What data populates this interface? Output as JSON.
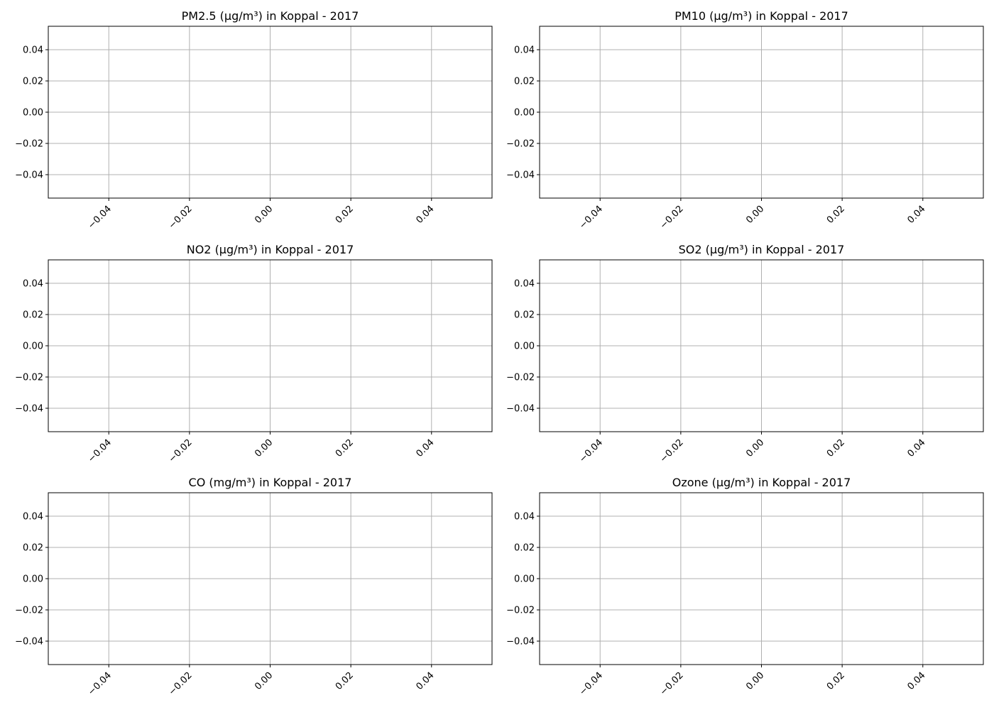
{
  "chart_data": [
    {
      "type": "line",
      "title": "PM2.5 (µg/m³) in Koppal - 2017",
      "xlabel": "",
      "ylabel": "",
      "x_ticks": [
        "−0.04",
        "−0.02",
        "0.00",
        "0.02",
        "0.04"
      ],
      "y_ticks": [
        "0.04",
        "0.02",
        "0.00",
        "−0.02",
        "−0.04"
      ],
      "xlim": [
        -0.055,
        0.055
      ],
      "ylim": [
        -0.055,
        0.055
      ],
      "grid": true,
      "series": []
    },
    {
      "type": "line",
      "title": "PM10 (µg/m³) in Koppal - 2017",
      "xlabel": "",
      "ylabel": "",
      "x_ticks": [
        "−0.04",
        "−0.02",
        "0.00",
        "0.02",
        "0.04"
      ],
      "y_ticks": [
        "0.04",
        "0.02",
        "0.00",
        "−0.02",
        "−0.04"
      ],
      "xlim": [
        -0.055,
        0.055
      ],
      "ylim": [
        -0.055,
        0.055
      ],
      "grid": true,
      "series": []
    },
    {
      "type": "line",
      "title": "NO2 (µg/m³) in Koppal - 2017",
      "xlabel": "",
      "ylabel": "",
      "x_ticks": [
        "−0.04",
        "−0.02",
        "0.00",
        "0.02",
        "0.04"
      ],
      "y_ticks": [
        "0.04",
        "0.02",
        "0.00",
        "−0.02",
        "−0.04"
      ],
      "xlim": [
        -0.055,
        0.055
      ],
      "ylim": [
        -0.055,
        0.055
      ],
      "grid": true,
      "series": []
    },
    {
      "type": "line",
      "title": "SO2 (µg/m³) in Koppal - 2017",
      "xlabel": "",
      "ylabel": "",
      "x_ticks": [
        "−0.04",
        "−0.02",
        "0.00",
        "0.02",
        "0.04"
      ],
      "y_ticks": [
        "0.04",
        "0.02",
        "0.00",
        "−0.02",
        "−0.04"
      ],
      "xlim": [
        -0.055,
        0.055
      ],
      "ylim": [
        -0.055,
        0.055
      ],
      "grid": true,
      "series": []
    },
    {
      "type": "line",
      "title": "CO (mg/m³) in Koppal - 2017",
      "xlabel": "",
      "ylabel": "",
      "x_ticks": [
        "−0.04",
        "−0.02",
        "0.00",
        "0.02",
        "0.04"
      ],
      "y_ticks": [
        "0.04",
        "0.02",
        "0.00",
        "−0.02",
        "−0.04"
      ],
      "xlim": [
        -0.055,
        0.055
      ],
      "ylim": [
        -0.055,
        0.055
      ],
      "grid": true,
      "series": []
    },
    {
      "type": "line",
      "title": "Ozone (µg/m³) in Koppal - 2017",
      "xlabel": "",
      "ylabel": "",
      "x_ticks": [
        "−0.04",
        "−0.02",
        "0.00",
        "0.02",
        "0.04"
      ],
      "y_ticks": [
        "0.04",
        "0.02",
        "0.00",
        "−0.02",
        "−0.04"
      ],
      "xlim": [
        -0.055,
        0.055
      ],
      "ylim": [
        -0.055,
        0.055
      ],
      "grid": true,
      "series": []
    }
  ],
  "colors": {
    "grid": "#b0b0b0",
    "axes": "#000000",
    "background": "#ffffff"
  }
}
